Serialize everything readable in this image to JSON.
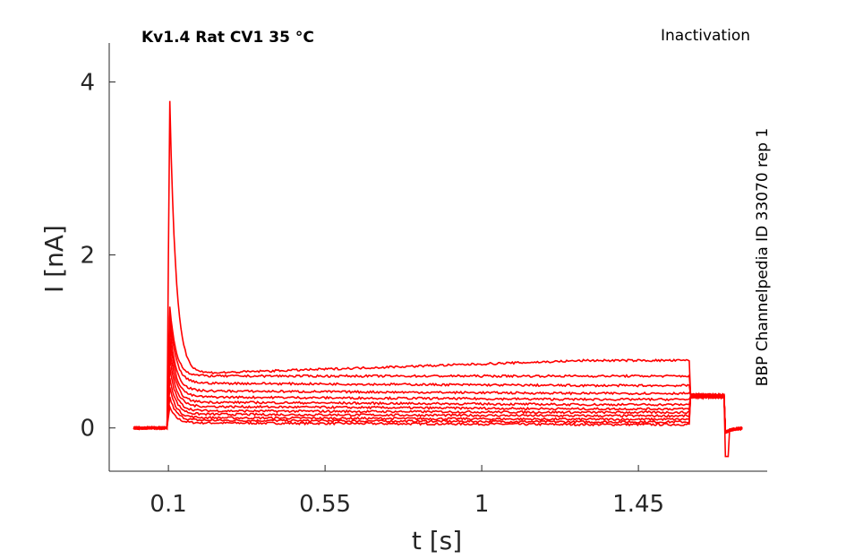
{
  "title_left": "Kv1.4  Rat  CV1  35 °C",
  "title_right": "Inactivation",
  "side_label": "BBP Channelpedia ID 33070 rep 1",
  "chart_data": {
    "type": "line",
    "title": "Kv1.4  Rat  CV1  35 °C",
    "xlabel": "t [s]",
    "ylabel": "I [nA]",
    "xlim": [
      -0.07,
      1.82
    ],
    "ylim": [
      -0.5,
      4.45
    ],
    "x_ticks": [
      0.1,
      0.55,
      1,
      1.45
    ],
    "x_tick_labels": [
      "0.1",
      "0.55",
      "1",
      "1.45"
    ],
    "y_ticks": [
      0,
      2,
      4
    ],
    "y_tick_labels": [
      "0",
      "2",
      "4"
    ],
    "grid": false,
    "color": "#ff0000",
    "stimulus": {
      "onset": 0.1,
      "step_end": 1.6,
      "end": 1.7,
      "peak": 3.95,
      "tail": 0.37
    },
    "sustained_levels": [
      0.04,
      0.07,
      0.1,
      0.14,
      0.18,
      0.22,
      0.27,
      0.33,
      0.4,
      0.49,
      0.6,
      0.78
    ],
    "early_levels": [
      0.06,
      0.09,
      0.12,
      0.16,
      0.2,
      0.25,
      0.3,
      0.36,
      0.43,
      0.52,
      0.6,
      0.62
    ]
  }
}
